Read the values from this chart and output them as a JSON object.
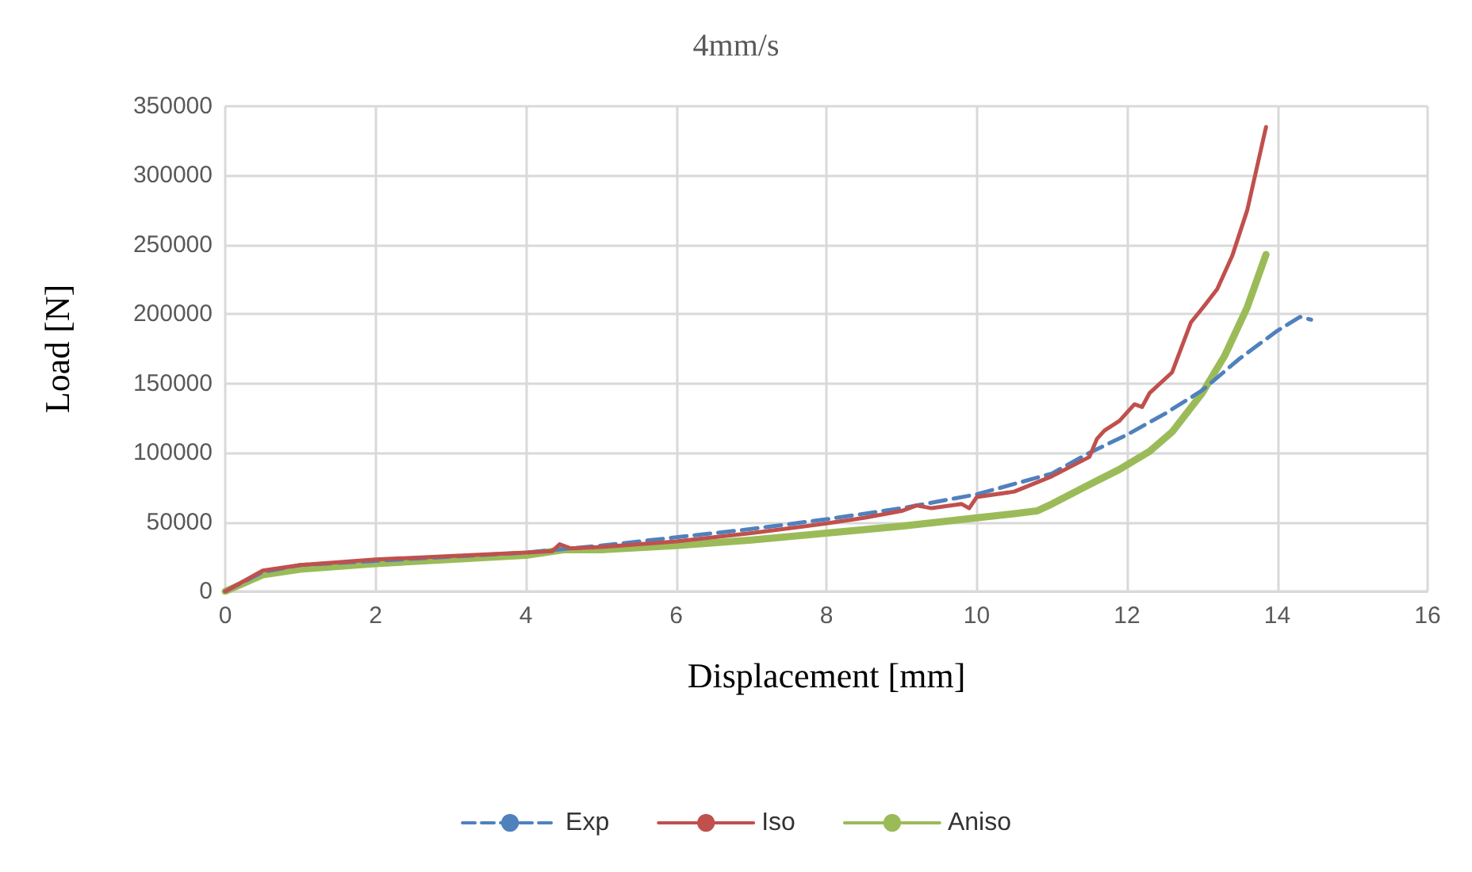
{
  "chart_data": {
    "type": "line",
    "title": "4mm/s",
    "xlabel": "Displacement [mm]",
    "ylabel": "Load [N]",
    "xlim": [
      0,
      16
    ],
    "xticks": [
      0,
      2,
      4,
      6,
      8,
      10,
      12,
      14,
      16
    ],
    "ylim": [
      0,
      350000
    ],
    "yticks": [
      0,
      50000,
      100000,
      150000,
      200000,
      250000,
      300000,
      350000
    ],
    "grid": true,
    "legend": "bottom",
    "marker": "none",
    "series": [
      {
        "name": "Exp",
        "color": "#4f81bd",
        "line_style": "dashed",
        "x": [
          0,
          0.5,
          1,
          2,
          4,
          5,
          6,
          7,
          8,
          9,
          10,
          11,
          11.5,
          12,
          12.5,
          13,
          13.5,
          14,
          14.3,
          14.45
        ],
        "values": [
          0,
          14000,
          19000,
          22000,
          28000,
          33000,
          39000,
          45000,
          52000,
          60000,
          70000,
          85000,
          100000,
          113000,
          128000,
          145000,
          168000,
          188000,
          198000,
          196000
        ]
      },
      {
        "name": "Iso",
        "color": "#c0504d",
        "line_style": "solid",
        "x": [
          0,
          0.5,
          1,
          2,
          4,
          4.35,
          4.45,
          4.6,
          5,
          6,
          7,
          8,
          8.5,
          9,
          9.2,
          9.4,
          9.8,
          9.9,
          10,
          10.5,
          11,
          11.5,
          11.6,
          11.7,
          11.9,
          12.1,
          12.2,
          12.3,
          12.6,
          12.85,
          13,
          13.2,
          13.4,
          13.6,
          13.85
        ],
        "values": [
          0,
          15000,
          19000,
          23000,
          28000,
          29000,
          34000,
          31000,
          32000,
          36000,
          42000,
          49000,
          53000,
          58000,
          62000,
          60000,
          63000,
          60000,
          68000,
          72000,
          83000,
          97000,
          110000,
          116000,
          123000,
          135000,
          133000,
          143000,
          158000,
          194000,
          204000,
          218000,
          242000,
          275000,
          335000
        ]
      },
      {
        "name": "Aniso",
        "color": "#9bbb59",
        "line_style": "solid",
        "x": [
          0,
          0.5,
          1,
          2,
          4,
          4.5,
          5,
          6,
          7,
          8,
          9,
          10,
          10.5,
          10.8,
          11,
          11.5,
          11.9,
          12.3,
          12.6,
          13,
          13.3,
          13.6,
          13.85
        ],
        "values": [
          0,
          12000,
          16000,
          20000,
          26000,
          30000,
          30000,
          33000,
          37000,
          42000,
          47000,
          53000,
          56000,
          58000,
          63000,
          77000,
          88000,
          101000,
          115000,
          143000,
          170000,
          205000,
          243000
        ]
      }
    ]
  }
}
